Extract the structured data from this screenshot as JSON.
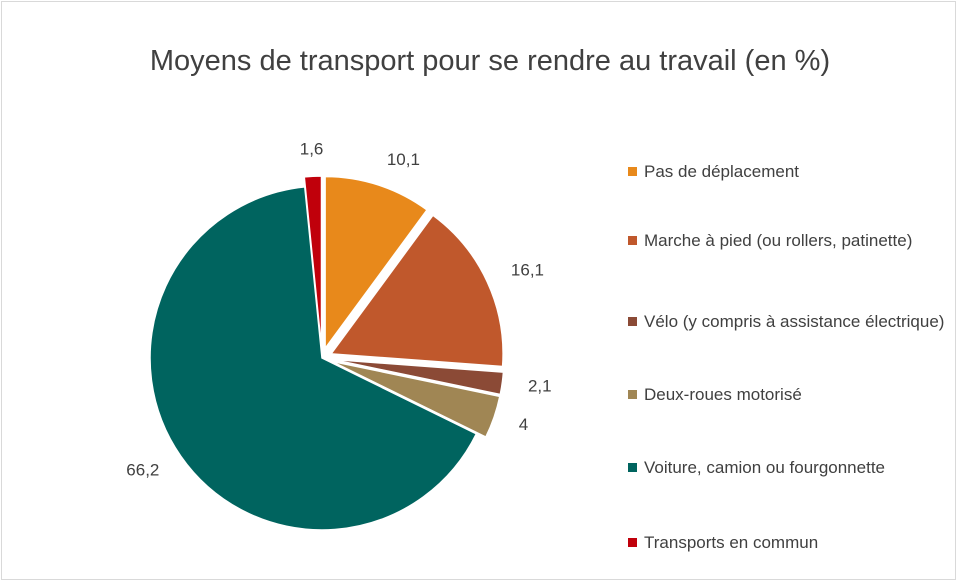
{
  "chart_data": {
    "type": "pie",
    "title": "Moyens de transport pour se rendre au travail (en %)",
    "categories": [
      "Pas de déplacement",
      "Marche à pied (ou rollers, patinette)",
      "Vélo (y compris à assistance électrique)",
      "Deux-roues motorisé",
      "Voiture, camion ou fourgonnette",
      "Transports en commun"
    ],
    "values": [
      10.1,
      16.1,
      2.1,
      4,
      66.2,
      1.6
    ],
    "value_labels": [
      "10,1",
      "16,1",
      "2,1",
      "4",
      "66,2",
      "1,6"
    ],
    "colors": [
      "#e8891b",
      "#c0582c",
      "#8b4a36",
      "#a08654",
      "#00645f",
      "#c0000b"
    ],
    "legend": "right"
  }
}
